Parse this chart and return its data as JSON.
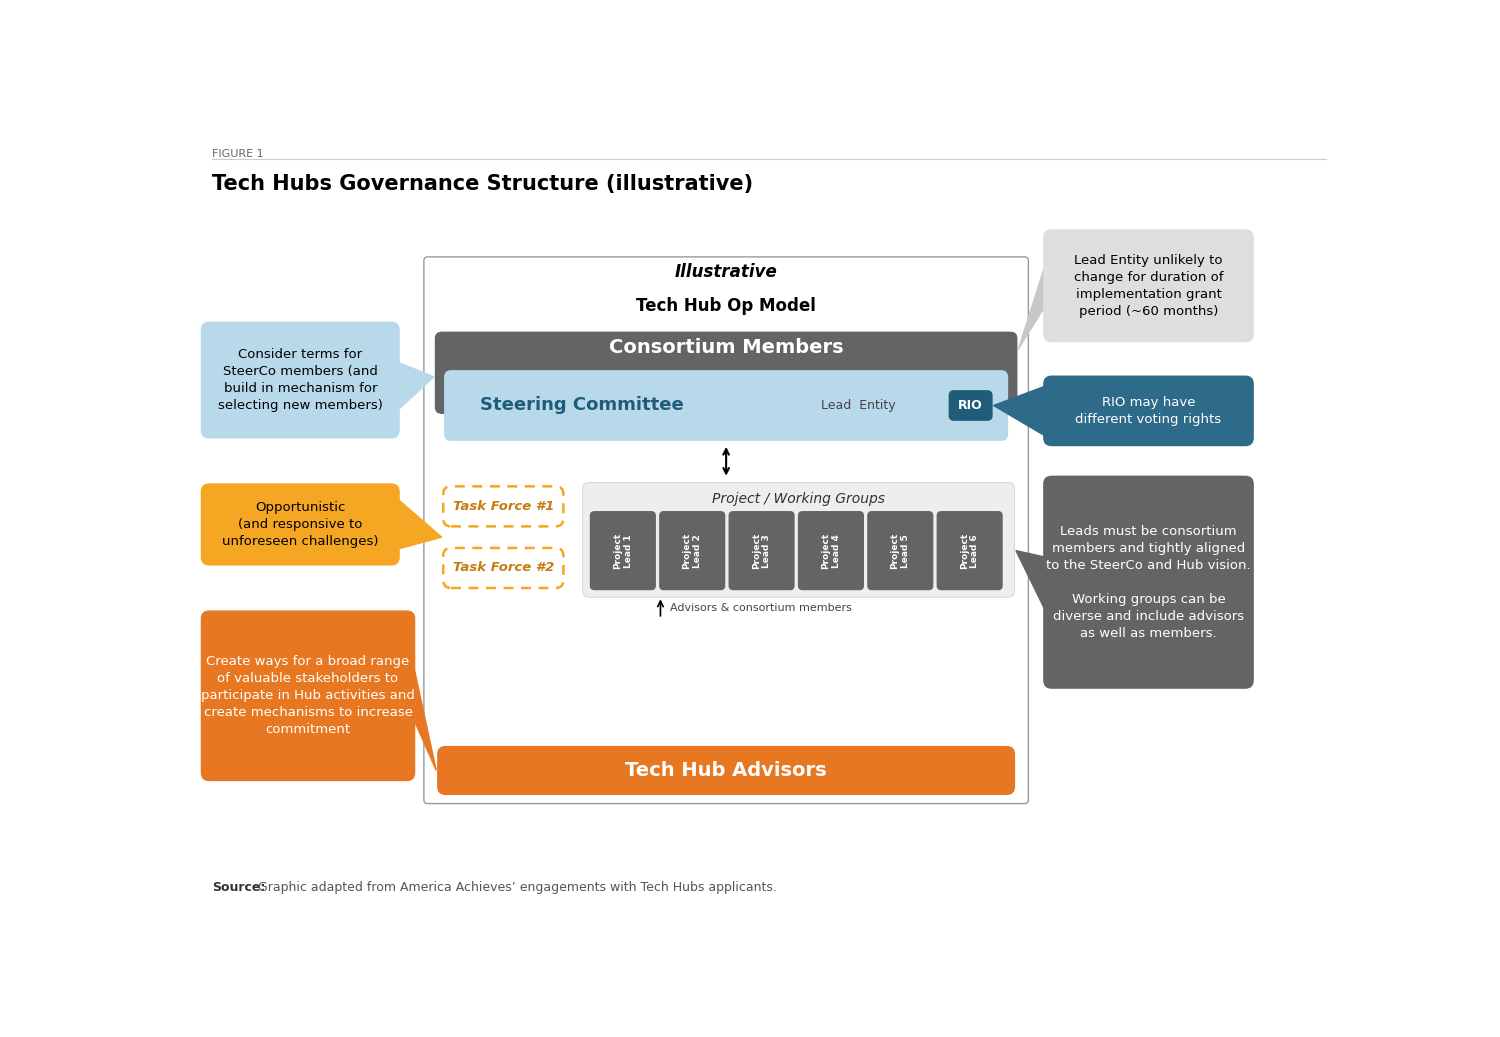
{
  "figure_label": "FIGURE 1",
  "title": "Tech Hubs Governance Structure (illustrative)",
  "source_bold": "Source:",
  "source_rest": " Graphic adapted from America Achieves’ engagements with Tech Hubs applicants.",
  "diagram_title_italic": "Illustrative",
  "diagram_title_bold": "Tech Hub Op Model",
  "consortium_label": "Consortium Members",
  "steering_label": "Steering Committee",
  "lead_entity_label": "Lead  Entity",
  "rio_label": "RIO",
  "task_force_1": "Task Force #1",
  "task_force_2": "Task Force #2",
  "project_groups_label": "Project / Working Groups",
  "project_leads": [
    "Project\nLead 1",
    "Project\nLead 2",
    "Project\nLead 3",
    "Project\nLead 4",
    "Project\nLead 5",
    "Project\nLead 6"
  ],
  "advisors_label": "Advisors & consortium members",
  "tech_hub_advisors": "Tech Hub Advisors",
  "callout_steerco": "Consider terms for\nSteerCo members (and\nbuild in mechanism for\nselecting new members)",
  "callout_task_force": "Opportunistic\n(and responsive to\nunforeseen challenges)",
  "callout_advisors": "Create ways for a broad range\nof valuable stakeholders to\nparticipate in Hub activities and\ncreate mechanisms to increase\ncommitment",
  "callout_lead_entity": "Lead Entity unlikely to\nchange for duration of\nimplementation grant\nperiod (~60 months)",
  "callout_rio": "RIO may have\ndifferent voting rights",
  "callout_project_leads": "Leads must be consortium\nmembers and tightly aligned\nto the SteerCo and Hub vision.\n\nWorking groups can be\ndiverse and include advisors\nas well as members.",
  "color_gray_dark": "#636466",
  "color_blue_light": "#b8d9ea",
  "color_blue_dark": "#1f5c7a",
  "color_orange": "#f5a623",
  "color_orange_dark": "#e87722",
  "color_white": "#ffffff",
  "color_callout_lead": "#dedede",
  "color_callout_rio": "#2e6b8a",
  "color_callout_project": "#636466",
  "color_border": "#999999"
}
